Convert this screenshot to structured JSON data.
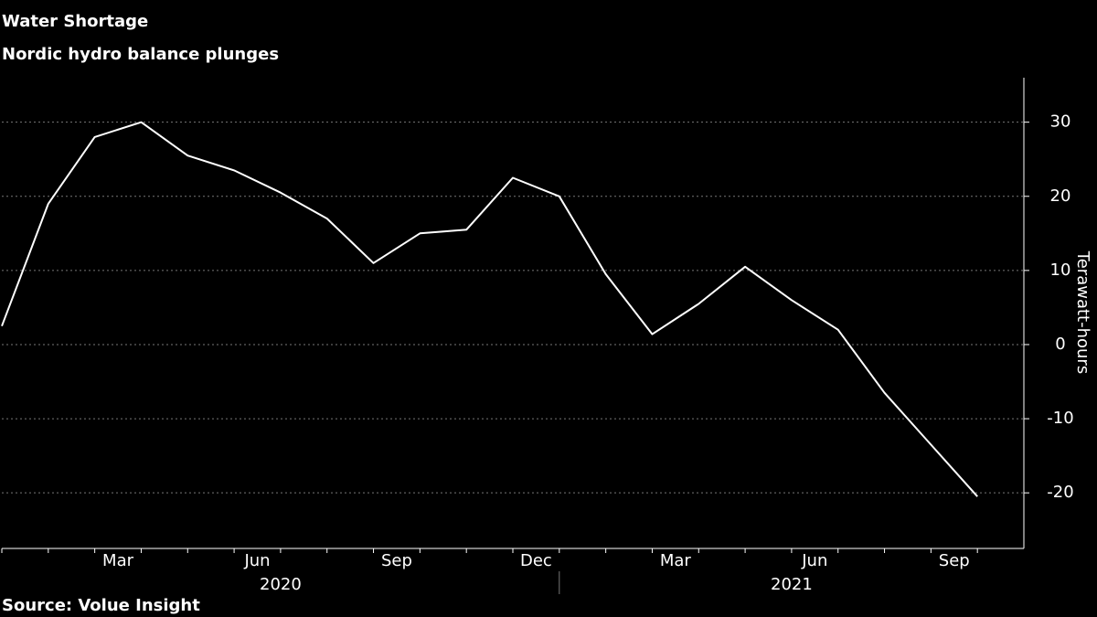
{
  "chart_data": {
    "type": "line",
    "title": "Water Shortage",
    "subtitle": "Nordic hydro balance plunges",
    "y_label": "Terawatt-hours",
    "source": "Source: Volue Insight",
    "x": [
      "2020-01",
      "2020-02",
      "2020-03",
      "2020-04",
      "2020-05",
      "2020-06",
      "2020-07",
      "2020-08",
      "2020-09",
      "2020-10",
      "2020-11",
      "2020-12",
      "2021-01",
      "2021-02",
      "2021-03",
      "2021-04",
      "2021-05",
      "2021-06",
      "2021-07",
      "2021-08",
      "2021-09",
      "2021-10"
    ],
    "series": [
      {
        "name": "Hydro balance",
        "color": "#ffffff",
        "values": [
          2.5,
          19,
          28,
          30,
          25.5,
          23.5,
          20.5,
          17,
          11,
          15,
          15.5,
          22.5,
          20,
          9.5,
          1.4,
          5.5,
          10.5,
          6,
          2,
          -6.5,
          -13.5,
          -20.5
        ]
      }
    ],
    "xlim": [
      "2020-01",
      "2021-11"
    ],
    "xticks": [
      {
        "value": "2020-03",
        "label": "Mar"
      },
      {
        "value": "2020-06",
        "label": "Jun"
      },
      {
        "value": "2020-09",
        "label": "Sep"
      },
      {
        "value": "2020-12",
        "label": "Dec"
      },
      {
        "value": "2021-03",
        "label": "Mar"
      },
      {
        "value": "2021-06",
        "label": "Jun"
      },
      {
        "value": "2021-09",
        "label": "Sep"
      }
    ],
    "x_groups": [
      "2020",
      "2021"
    ],
    "ylim": [
      -27.5,
      36
    ],
    "yticks": [
      -20,
      -10,
      0,
      10,
      20,
      30
    ],
    "grid": true,
    "y_axis_side": "right"
  }
}
